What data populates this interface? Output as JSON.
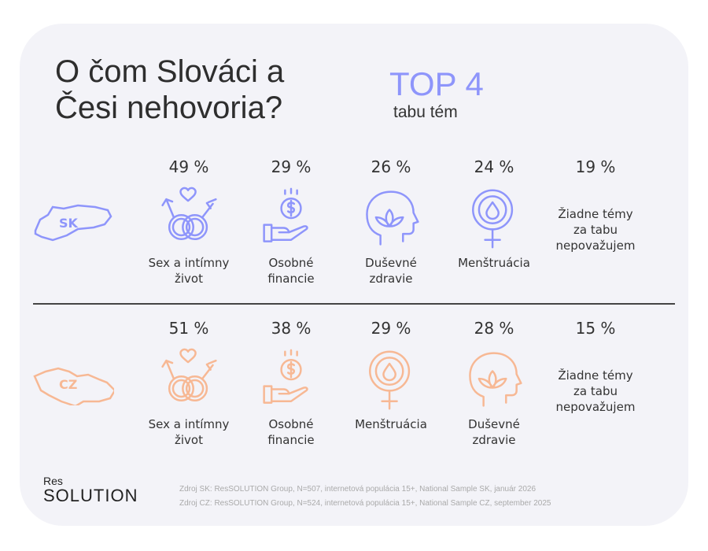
{
  "title_line1": "O čom Slováci a",
  "title_line2": "Česi nehovoria?",
  "top4": "TOP 4",
  "subtitle": "tabu tém",
  "colors": {
    "sk": "#8e95fb",
    "cz": "#f7b894",
    "card": "#f3f3f8"
  },
  "sk": {
    "code": "SK",
    "items": [
      {
        "pct": "49 %",
        "l1": "Sex a intímny",
        "l2": "život",
        "icon": "sex-icon"
      },
      {
        "pct": "29 %",
        "l1": "Osobné",
        "l2": "financie",
        "icon": "money-hand-icon"
      },
      {
        "pct": "26 %",
        "l1": "Duševné",
        "l2": "zdravie",
        "icon": "lotus-head-icon"
      },
      {
        "pct": "24 %",
        "l1": "Menštruácia",
        "l2": "",
        "icon": "menstruation-icon"
      }
    ],
    "none": {
      "pct": "19 %",
      "l1": "Žiadne témy",
      "l2": "za tabu",
      "l3": "nepovažujem"
    }
  },
  "cz": {
    "code": "CZ",
    "items": [
      {
        "pct": "51 %",
        "l1": "Sex a intímny",
        "l2": "život",
        "icon": "sex-icon"
      },
      {
        "pct": "38 %",
        "l1": "Osobné",
        "l2": "financie",
        "icon": "money-hand-icon"
      },
      {
        "pct": "29 %",
        "l1": "Menštruácia",
        "l2": "",
        "icon": "menstruation-icon"
      },
      {
        "pct": "28 %",
        "l1": "Duševné",
        "l2": "zdravie",
        "icon": "lotus-head-icon"
      }
    ],
    "none": {
      "pct": "15 %",
      "l1": "Žiadne témy",
      "l2": "za tabu",
      "l3": "nepovažujem"
    }
  },
  "logo": {
    "small": "Res",
    "big": "SOLUTION"
  },
  "source_sk": "Zdroj SK: ResSOLUTION Group, N=507, internetová populácia 15+, National Sample SK, január 2026",
  "source_cz": "Zdroj CZ: ResSOLUTION Group, N=524, internetová populácia 15+, National Sample CZ, september 2025"
}
